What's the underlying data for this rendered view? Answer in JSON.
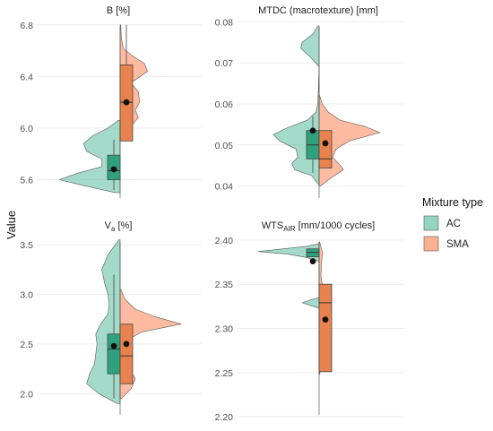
{
  "y_axis_label": "Value",
  "legend": {
    "title": "Mixture type",
    "items": [
      {
        "label": "AC",
        "color": "#66c2a5"
      },
      {
        "label": "SMA",
        "color": "#fc8d62"
      }
    ]
  },
  "colors": {
    "AC_fill": "#66c2a5",
    "SMA_fill": "#fc8d62",
    "AC_box": "#2fa27d",
    "SMA_box": "#e8824e",
    "median": "#333333"
  },
  "chart_data": [
    {
      "type": "violin-box",
      "title": "B [%]",
      "ylim": [
        5.43,
        6.84
      ],
      "yticks": [
        5.6,
        6.0,
        6.4,
        6.8
      ],
      "tick_labels": [
        "5.6",
        "6.0",
        "6.4",
        "6.8"
      ],
      "grid": true,
      "series": [
        {
          "name": "AC",
          "density": [
            [
              5.5,
              0.08
            ],
            [
              5.56,
              0.65
            ],
            [
              5.6,
              1.0
            ],
            [
              5.65,
              0.7
            ],
            [
              5.7,
              0.3
            ],
            [
              5.76,
              0.3
            ],
            [
              5.82,
              0.55
            ],
            [
              5.88,
              0.6
            ],
            [
              5.94,
              0.45
            ],
            [
              6.0,
              0.2
            ],
            [
              6.06,
              0.03
            ]
          ],
          "box": {
            "q1": 5.6,
            "median": 5.67,
            "q3": 5.79,
            "whisker_low": 5.52,
            "whisker_high": 5.91
          },
          "mean": 5.68
        },
        {
          "name": "SMA",
          "density": [
            [
              5.94,
              0.02
            ],
            [
              6.0,
              0.15
            ],
            [
              6.08,
              0.3
            ],
            [
              6.14,
              0.25
            ],
            [
              6.2,
              0.32
            ],
            [
              6.28,
              0.3
            ],
            [
              6.35,
              0.18
            ],
            [
              6.44,
              0.45
            ],
            [
              6.5,
              0.4
            ],
            [
              6.56,
              0.2
            ],
            [
              6.62,
              0.05
            ],
            [
              6.7,
              0.02
            ],
            [
              6.8,
              0.01
            ]
          ],
          "box": {
            "q1": 5.9,
            "median": 6.2,
            "q3": 6.49,
            "whisker_low": 5.9,
            "whisker_high": 6.8
          },
          "mean": 6.2
        }
      ]
    },
    {
      "type": "violin-box",
      "title": "MTDC (macrotexture) [mm]",
      "ylim": [
        0.0362,
        0.0805
      ],
      "yticks": [
        0.04,
        0.05,
        0.06,
        0.07,
        0.08
      ],
      "tick_labels": [
        "0.04",
        "0.05",
        "0.06",
        "0.07",
        "0.08"
      ],
      "grid": true,
      "series": [
        {
          "name": "AC",
          "density": [
            [
              0.0405,
              0.02
            ],
            [
              0.0425,
              0.12
            ],
            [
              0.044,
              0.4
            ],
            [
              0.0455,
              0.45
            ],
            [
              0.047,
              0.35
            ],
            [
              0.049,
              0.38
            ],
            [
              0.051,
              0.65
            ],
            [
              0.0525,
              0.75
            ],
            [
              0.054,
              0.55
            ],
            [
              0.056,
              0.2
            ],
            [
              0.058,
              0.05
            ],
            [
              0.06,
              0.02
            ],
            [
              0.069,
              0.0
            ],
            [
              0.0715,
              0.15
            ],
            [
              0.0735,
              0.3
            ],
            [
              0.075,
              0.28
            ],
            [
              0.077,
              0.1
            ],
            [
              0.079,
              0.02
            ]
          ],
          "box": {
            "q1": 0.0466,
            "median": 0.05,
            "q3": 0.0535,
            "whisker_low": 0.0432,
            "whisker_high": 0.057
          },
          "mean": 0.0535
        },
        {
          "name": "SMA",
          "density": [
            [
              0.04,
              0.02
            ],
            [
              0.042,
              0.2
            ],
            [
              0.044,
              0.4
            ],
            [
              0.0455,
              0.32
            ],
            [
              0.047,
              0.22
            ],
            [
              0.049,
              0.28
            ],
            [
              0.051,
              0.5
            ],
            [
              0.053,
              1.0
            ],
            [
              0.0545,
              0.75
            ],
            [
              0.056,
              0.35
            ],
            [
              0.058,
              0.15
            ],
            [
              0.06,
              0.05
            ],
            [
              0.062,
              0.01
            ]
          ],
          "box": {
            "q1": 0.0444,
            "median": 0.0466,
            "q3": 0.0535,
            "whisker_low": 0.0444,
            "whisker_high": 0.0535
          },
          "mean": 0.0504
        }
      ]
    },
    {
      "type": "violin-box",
      "title_main": "V",
      "title_sub": "a",
      "title_rest": " [%]",
      "ylim": [
        1.75,
        3.6
      ],
      "yticks": [
        2.0,
        2.5,
        3.0,
        3.5
      ],
      "tick_labels": [
        "2.0",
        "2.5",
        "3.0",
        "3.5"
      ],
      "grid": true,
      "series": [
        {
          "name": "AC",
          "density": [
            [
              1.9,
              0.05
            ],
            [
              2.0,
              0.35
            ],
            [
              2.1,
              0.55
            ],
            [
              2.2,
              0.5
            ],
            [
              2.3,
              0.42
            ],
            [
              2.4,
              0.4
            ],
            [
              2.5,
              0.38
            ],
            [
              2.6,
              0.4
            ],
            [
              2.7,
              0.32
            ],
            [
              2.8,
              0.2
            ],
            [
              2.9,
              0.18
            ],
            [
              3.0,
              0.2
            ],
            [
              3.1,
              0.25
            ],
            [
              3.25,
              0.3
            ],
            [
              3.4,
              0.2
            ],
            [
              3.5,
              0.08
            ],
            [
              3.55,
              0.02
            ]
          ],
          "box": {
            "q1": 2.2,
            "median": 2.45,
            "q3": 2.6,
            "whisker_low": 1.95,
            "whisker_high": 3.2
          },
          "mean": 2.48
        },
        {
          "name": "SMA",
          "density": [
            [
              1.95,
              0.02
            ],
            [
              2.05,
              0.18
            ],
            [
              2.15,
              0.25
            ],
            [
              2.25,
              0.15
            ],
            [
              2.35,
              0.05
            ],
            [
              2.45,
              0.04
            ],
            [
              2.55,
              0.15
            ],
            [
              2.62,
              0.35
            ],
            [
              2.7,
              1.0
            ],
            [
              2.78,
              0.55
            ],
            [
              2.85,
              0.25
            ],
            [
              2.95,
              0.08
            ],
            [
              3.05,
              0.01
            ]
          ],
          "box": {
            "q1": 2.1,
            "median": 2.38,
            "q3": 2.7,
            "whisker_low": 2.1,
            "whisker_high": 2.7
          },
          "mean": 2.5
        }
      ]
    },
    {
      "type": "violin-box",
      "title_main": "WTS",
      "title_sub": "AIR",
      "title_rest": " [mm/1000 cycles]",
      "ylim": [
        2.198,
        2.406
      ],
      "yticks": [
        2.2,
        2.25,
        2.3,
        2.35,
        2.4
      ],
      "tick_labels": [
        "2.20",
        "2.25",
        "2.30",
        "2.35",
        "2.40"
      ],
      "grid": true,
      "series": [
        {
          "name": "AC",
          "density": [
            [
              2.323,
              0.0
            ],
            [
              2.326,
              0.15
            ],
            [
              2.329,
              0.28
            ],
            [
              2.332,
              0.15
            ],
            [
              2.335,
              0.0
            ],
            [
              2.376,
              0.0
            ],
            [
              2.38,
              0.2
            ],
            [
              2.384,
              0.5
            ],
            [
              2.387,
              1.0
            ],
            [
              2.39,
              0.6
            ],
            [
              2.393,
              0.2
            ],
            [
              2.396,
              0.0
            ]
          ],
          "box": {
            "q1": 2.381,
            "median": 2.386,
            "q3": 2.39,
            "whisker_low": 2.381,
            "whisker_high": 2.39
          },
          "mean": 2.376
        },
        {
          "name": "SMA",
          "density": [
            [
              2.248,
              0.01
            ],
            [
              2.26,
              0.03
            ],
            [
              2.275,
              0.08
            ],
            [
              2.29,
              0.14
            ],
            [
              2.305,
              0.16
            ],
            [
              2.318,
              0.14
            ],
            [
              2.33,
              0.1
            ],
            [
              2.345,
              0.06
            ],
            [
              2.36,
              0.03
            ],
            [
              2.375,
              0.04
            ],
            [
              2.385,
              0.06
            ],
            [
              2.392,
              0.03
            ],
            [
              2.398,
              0.01
            ]
          ],
          "box": {
            "q1": 2.251,
            "median": 2.329,
            "q3": 2.35,
            "whisker_low": 2.251,
            "whisker_high": 2.35
          },
          "mean": 2.31
        }
      ]
    }
  ]
}
